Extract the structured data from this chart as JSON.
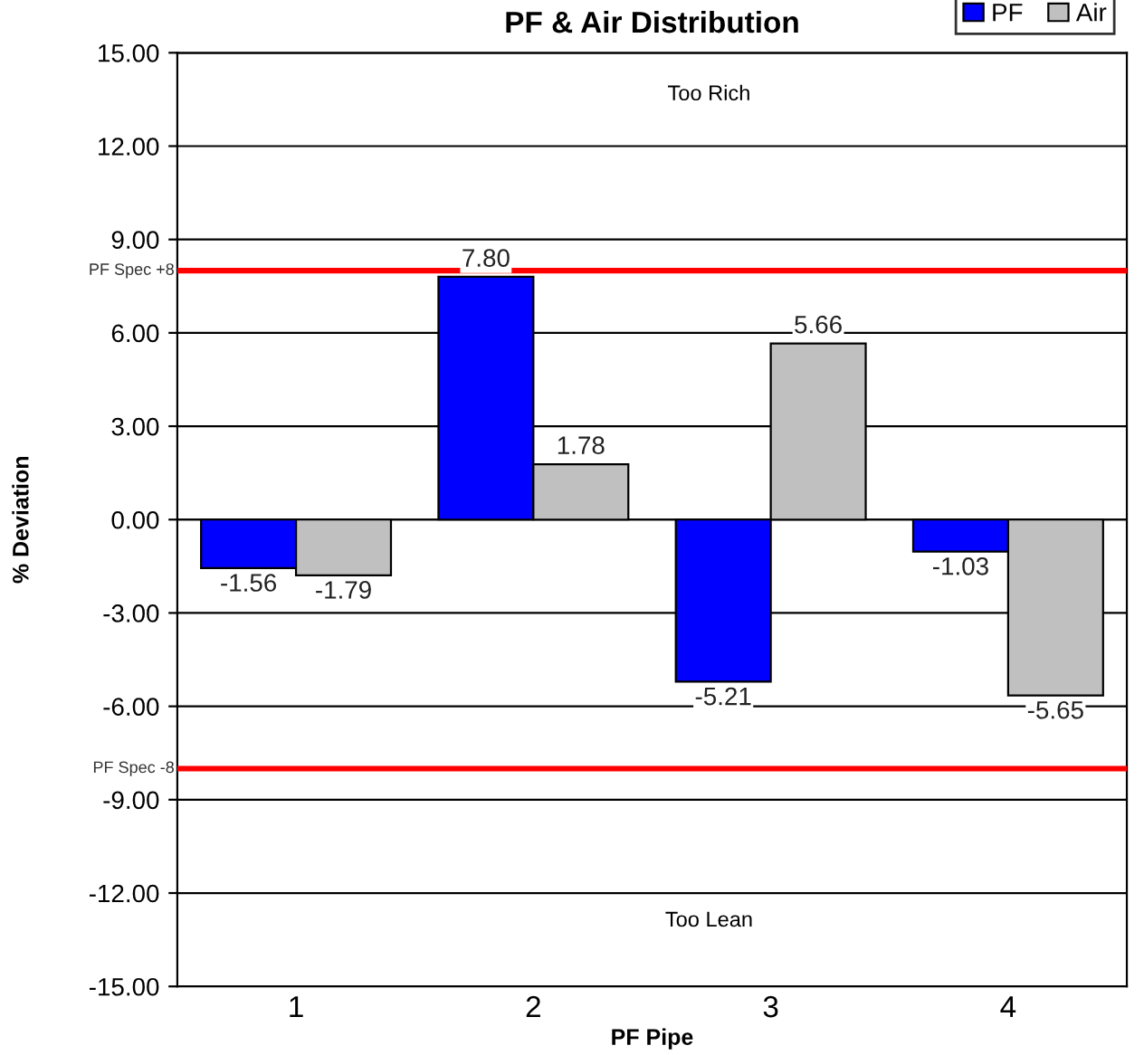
{
  "chart_data": {
    "type": "bar",
    "title": "PF & Air Distribution",
    "xlabel": "PF Pipe",
    "ylabel": "% Deviation",
    "categories": [
      "1",
      "2",
      "3",
      "4"
    ],
    "series": [
      {
        "name": "PF",
        "color": "#0000ff",
        "values": [
          -1.56,
          7.8,
          -5.21,
          -1.03
        ]
      },
      {
        "name": "Air",
        "color": "#c0c0c0",
        "values": [
          -1.79,
          1.78,
          5.66,
          -5.65
        ]
      }
    ],
    "value_labels": [
      [
        "-1.56",
        "7.80",
        "-5.21",
        "-1.03"
      ],
      [
        "-1.79",
        "1.78",
        "5.66",
        "-5.65"
      ]
    ],
    "ylim": [
      -15,
      15
    ],
    "yticks": [
      {
        "value": -15,
        "label": "-15.00"
      },
      {
        "value": -12,
        "label": "-12.00"
      },
      {
        "value": -9,
        "label": "-9.00"
      },
      {
        "value": -6,
        "label": "-6.00"
      },
      {
        "value": -3,
        "label": "-3.00"
      },
      {
        "value": 0,
        "label": "0.00"
      },
      {
        "value": 3,
        "label": "3.00"
      },
      {
        "value": 6,
        "label": "6.00"
      },
      {
        "value": 9,
        "label": "9.00"
      },
      {
        "value": 12,
        "label": "12.00"
      },
      {
        "value": 15,
        "label": "15.00"
      }
    ],
    "ref_lines": [
      {
        "axis": "y",
        "value": 8,
        "label": "PF Spec +8",
        "color": "#ff0000"
      },
      {
        "axis": "y",
        "value": -8,
        "label": "PF Spec -8",
        "color": "#ff0000"
      }
    ],
    "annotations": [
      "Too Rich",
      "Too Lean"
    ],
    "grid": "y",
    "legend": "top right"
  }
}
